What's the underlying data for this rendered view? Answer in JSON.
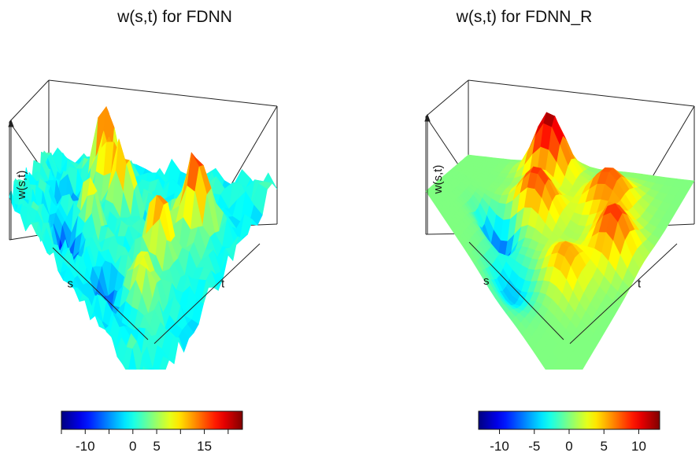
{
  "chart_data": [
    {
      "type": "surface3d",
      "title": "w(s,t) for FDNN",
      "xlabel": "s",
      "ylabel": "t",
      "zlabel": "w(s,t)",
      "colormap": "jet",
      "colorbar": {
        "ticks": [
          -10,
          0,
          5,
          15
        ],
        "tick_labels": [
          "-10",
          "0",
          "5",
          "15"
        ],
        "range": [
          -15,
          23
        ]
      },
      "surface": {
        "base": 0,
        "noise": 6.0,
        "seed": 17,
        "peaks": [
          {
            "s": 0.18,
            "t": 0.3,
            "h": 22,
            "w": 0.035
          },
          {
            "s": 0.3,
            "t": 0.34,
            "h": 14,
            "w": 0.035
          },
          {
            "s": 0.34,
            "t": 0.44,
            "h": 15,
            "w": 0.035
          },
          {
            "s": 0.3,
            "t": 0.78,
            "h": 16,
            "w": 0.05
          },
          {
            "s": 0.5,
            "t": 0.7,
            "h": 14,
            "w": 0.045
          },
          {
            "s": 0.7,
            "t": 0.74,
            "h": 10,
            "w": 0.05
          },
          {
            "s": 0.55,
            "t": 0.35,
            "h": 9,
            "w": 0.04
          },
          {
            "s": 0.72,
            "t": 0.28,
            "h": -10,
            "w": 0.05
          },
          {
            "s": 0.8,
            "t": 0.55,
            "h": -9,
            "w": 0.05
          },
          {
            "s": 0.4,
            "t": 0.2,
            "h": -8,
            "w": 0.045
          }
        ]
      }
    },
    {
      "type": "surface3d",
      "title": "w(s,t) for FDNN_R",
      "xlabel": "s",
      "ylabel": "t",
      "zlabel": "w(s,t)",
      "colormap": "jet",
      "colorbar": {
        "ticks": [
          -10,
          -5,
          0,
          5,
          10
        ],
        "tick_labels": [
          "-10",
          "-5",
          "0",
          "5",
          "10"
        ],
        "range": [
          -13,
          13
        ]
      },
      "surface": {
        "base": 0,
        "noise": 0,
        "seed": 3,
        "peaks": [
          {
            "s": 0.12,
            "t": 0.4,
            "h": 13,
            "w": 0.06
          },
          {
            "s": 0.22,
            "t": 0.72,
            "h": 8,
            "w": 0.07
          },
          {
            "s": 0.4,
            "t": 0.45,
            "h": 9,
            "w": 0.07
          },
          {
            "s": 0.4,
            "t": 0.85,
            "h": 9,
            "w": 0.06
          },
          {
            "s": 0.62,
            "t": 0.72,
            "h": 6,
            "w": 0.07
          },
          {
            "s": 0.6,
            "t": 0.32,
            "h": -9,
            "w": 0.06
          },
          {
            "s": 0.82,
            "t": 0.5,
            "h": -5,
            "w": 0.08
          }
        ]
      }
    }
  ]
}
